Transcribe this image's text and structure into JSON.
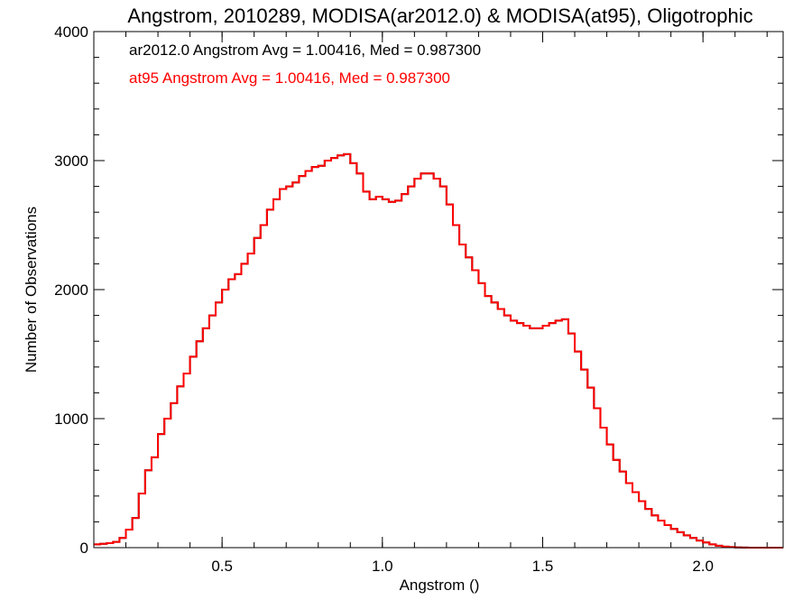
{
  "chart_data": {
    "type": "histogram",
    "title": "Angstrom, 2010289, MODISA(ar2012.0) & MODISA(at95), Oligotrophic",
    "xlabel": "Angstrom ()",
    "ylabel": "Number of Observations",
    "xlim": [
      0.1,
      2.25
    ],
    "ylim": [
      0,
      4000
    ],
    "x_ticks": [
      0.5,
      1.0,
      1.5,
      2.0
    ],
    "x_tick_labels": [
      "0.5",
      "1.0",
      "1.5",
      "2.0"
    ],
    "x_minor_step": 0.1,
    "y_ticks": [
      0,
      1000,
      2000,
      3000,
      4000
    ],
    "y_tick_labels": [
      "0",
      "1000",
      "2000",
      "3000",
      "4000"
    ],
    "y_minor_step": 200,
    "bin_width": 0.01,
    "annotations": [
      {
        "text": "ar2012.0 Angstrom Avg = 1.00416, Med = 0.987300",
        "color": "#000000"
      },
      {
        "text": "at95 Angstrom Avg = 1.00416, Med = 0.987300",
        "color": "#ff0000"
      }
    ],
    "colors": {
      "series_1": "#000000",
      "series_2": "#ff0000"
    },
    "x": [
      0.1,
      0.12,
      0.14,
      0.16,
      0.18,
      0.2,
      0.22,
      0.24,
      0.26,
      0.28,
      0.3,
      0.32,
      0.34,
      0.36,
      0.38,
      0.4,
      0.42,
      0.44,
      0.46,
      0.48,
      0.5,
      0.52,
      0.54,
      0.56,
      0.58,
      0.6,
      0.62,
      0.64,
      0.66,
      0.68,
      0.7,
      0.72,
      0.74,
      0.76,
      0.78,
      0.8,
      0.82,
      0.84,
      0.86,
      0.88,
      0.9,
      0.92,
      0.94,
      0.96,
      0.98,
      1.0,
      1.02,
      1.04,
      1.06,
      1.08,
      1.1,
      1.12,
      1.14,
      1.16,
      1.18,
      1.2,
      1.22,
      1.24,
      1.26,
      1.28,
      1.3,
      1.32,
      1.34,
      1.36,
      1.38,
      1.4,
      1.42,
      1.44,
      1.46,
      1.48,
      1.5,
      1.52,
      1.54,
      1.56,
      1.58,
      1.6,
      1.62,
      1.64,
      1.66,
      1.68,
      1.7,
      1.72,
      1.74,
      1.76,
      1.78,
      1.8,
      1.82,
      1.84,
      1.86,
      1.88,
      1.9,
      1.92,
      1.94,
      1.96,
      1.98,
      2.0,
      2.02,
      2.04,
      2.06,
      2.08,
      2.1,
      2.12,
      2.14,
      2.16,
      2.18,
      2.2,
      2.22,
      2.24
    ],
    "series": [
      {
        "values": [
          25,
          30,
          35,
          45,
          75,
          140,
          230,
          420,
          600,
          700,
          880,
          1000,
          1120,
          1250,
          1350,
          1480,
          1600,
          1700,
          1800,
          1900,
          2000,
          2080,
          2120,
          2200,
          2280,
          2400,
          2500,
          2620,
          2700,
          2780,
          2800,
          2830,
          2880,
          2920,
          2950,
          2960,
          3000,
          3020,
          3040,
          3050,
          2980,
          2900,
          2760,
          2700,
          2720,
          2700,
          2680,
          2690,
          2740,
          2800,
          2860,
          2900,
          2900,
          2860,
          2800,
          2660,
          2500,
          2350,
          2250,
          2150,
          2050,
          1950,
          1900,
          1850,
          1800,
          1760,
          1740,
          1720,
          1700,
          1700,
          1720,
          1740,
          1760,
          1770,
          1660,
          1520,
          1380,
          1240,
          1080,
          930,
          800,
          680,
          590,
          500,
          430,
          360,
          300,
          250,
          210,
          175,
          145,
          120,
          95,
          75,
          55,
          40,
          25,
          15,
          8,
          4,
          2,
          1,
          0,
          0,
          0,
          0,
          0,
          0
        ]
      }
    ]
  }
}
